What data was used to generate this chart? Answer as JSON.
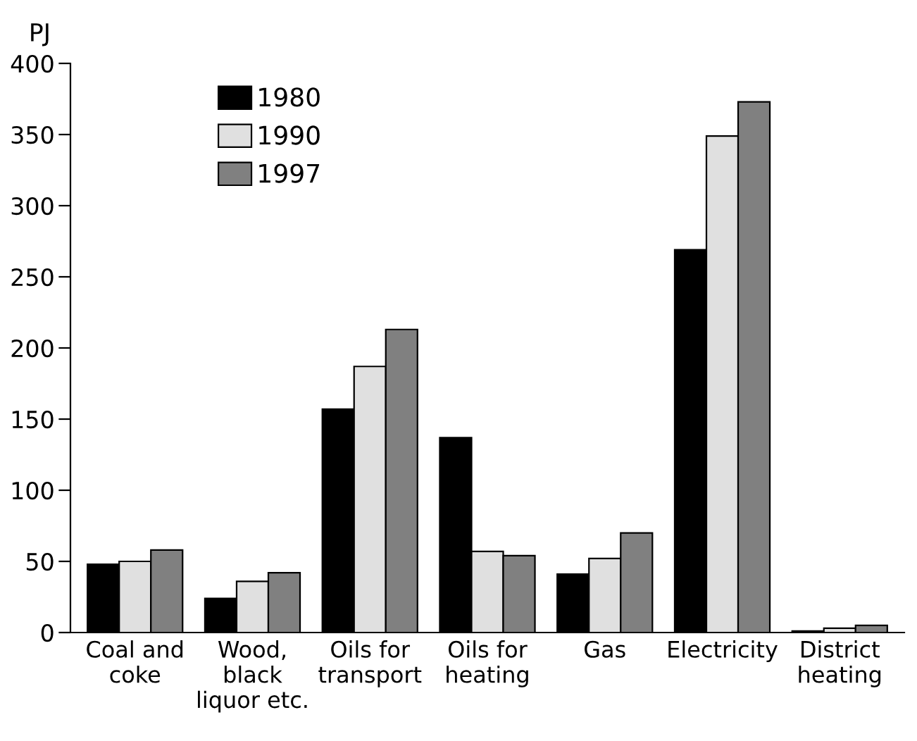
{
  "chart_data": {
    "type": "bar",
    "ylabel": "PJ",
    "categories": [
      "Coal and\ncoke",
      "Wood,\nblack\nliquor etc.",
      "Oils for\ntransport",
      "Oils for\nheating",
      "Gas",
      "Electricity",
      "District\nheating"
    ],
    "series": [
      {
        "name": "1980",
        "color": "#000000",
        "values": [
          48,
          24,
          157,
          137,
          41,
          269,
          1
        ]
      },
      {
        "name": "1990",
        "color": "#e0e0e0",
        "values": [
          50,
          36,
          187,
          57,
          52,
          349,
          3
        ]
      },
      {
        "name": "1997",
        "color": "#808080",
        "values": [
          58,
          42,
          213,
          54,
          70,
          373,
          5
        ]
      }
    ],
    "ylim": [
      0,
      400
    ],
    "yticks": [
      0,
      50,
      100,
      150,
      200,
      250,
      300,
      350,
      400
    ],
    "grid": false,
    "legend": "top left"
  }
}
